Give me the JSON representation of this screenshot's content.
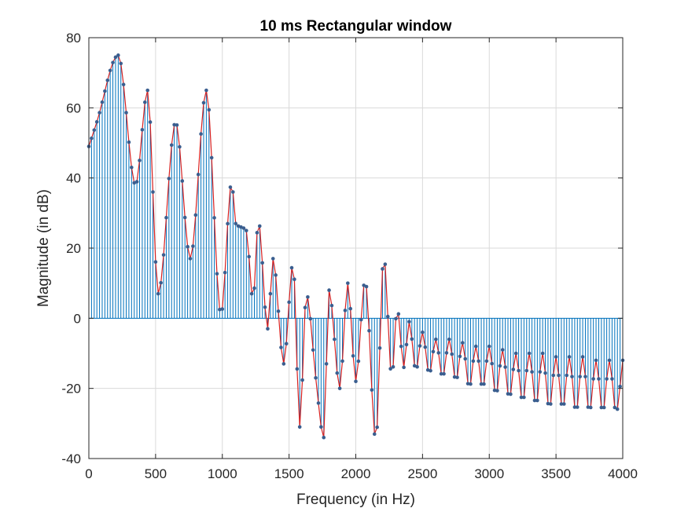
{
  "chart_data": {
    "type": "line",
    "title": "10 ms Rectangular window",
    "xlabel": "Frequency (in Hz)",
    "ylabel": "Magnitude (in dB)",
    "xlim": [
      0,
      4000
    ],
    "ylim": [
      -40,
      80
    ],
    "xticks": [
      0,
      500,
      1000,
      1500,
      2000,
      2500,
      3000,
      3500,
      4000
    ],
    "yticks": [
      -40,
      -20,
      0,
      20,
      40,
      60,
      80
    ],
    "grid": true,
    "legend": "none",
    "colors": {
      "stem": "#0072BD",
      "line": "#D62020",
      "marker": "#3A5E8F",
      "axes": "#262626",
      "grid": "#DADADA"
    },
    "sample_spacing_hz": 20,
    "series": [
      {
        "style": "stem-with-markers-and-line",
        "x": [
          0,
          60,
          220,
          350,
          440,
          520,
          650,
          760,
          880,
          990,
          1070,
          1100,
          1180,
          1230,
          1270,
          1340,
          1380,
          1460,
          1530,
          1580,
          1630,
          1700,
          1760,
          1800,
          1880,
          1940,
          2000,
          2070,
          2150,
          2210,
          2270,
          2310,
          2360,
          2400,
          2450,
          2500,
          2550,
          2600,
          2650,
          2700,
          2750,
          2800,
          2850,
          2900,
          2950,
          3000,
          3050,
          3100,
          3150,
          3200,
          3250,
          3300,
          3350,
          3400,
          3450,
          3500,
          3550,
          3600,
          3650,
          3700,
          3750,
          3800,
          3850,
          3900,
          3950,
          4000
        ],
        "y": [
          49,
          56,
          75,
          38,
          65,
          7,
          56,
          17,
          65,
          1,
          39,
          27,
          25,
          5,
          28,
          -3,
          17,
          -13,
          16,
          -31,
          7,
          -17,
          -34,
          8,
          -20,
          10,
          -18,
          11,
          -35,
          18,
          -17,
          3,
          -14,
          -1,
          -15,
          -4,
          -16,
          -6,
          -17,
          -6,
          -18,
          -7,
          -20,
          -8,
          -20,
          -8,
          -22,
          -9,
          -23,
          -10,
          -24,
          -10,
          -25,
          -10,
          -26,
          -11,
          -26,
          -11,
          -27,
          -11,
          -27,
          -12,
          -27,
          -12,
          -27,
          -12
        ]
      }
    ]
  }
}
